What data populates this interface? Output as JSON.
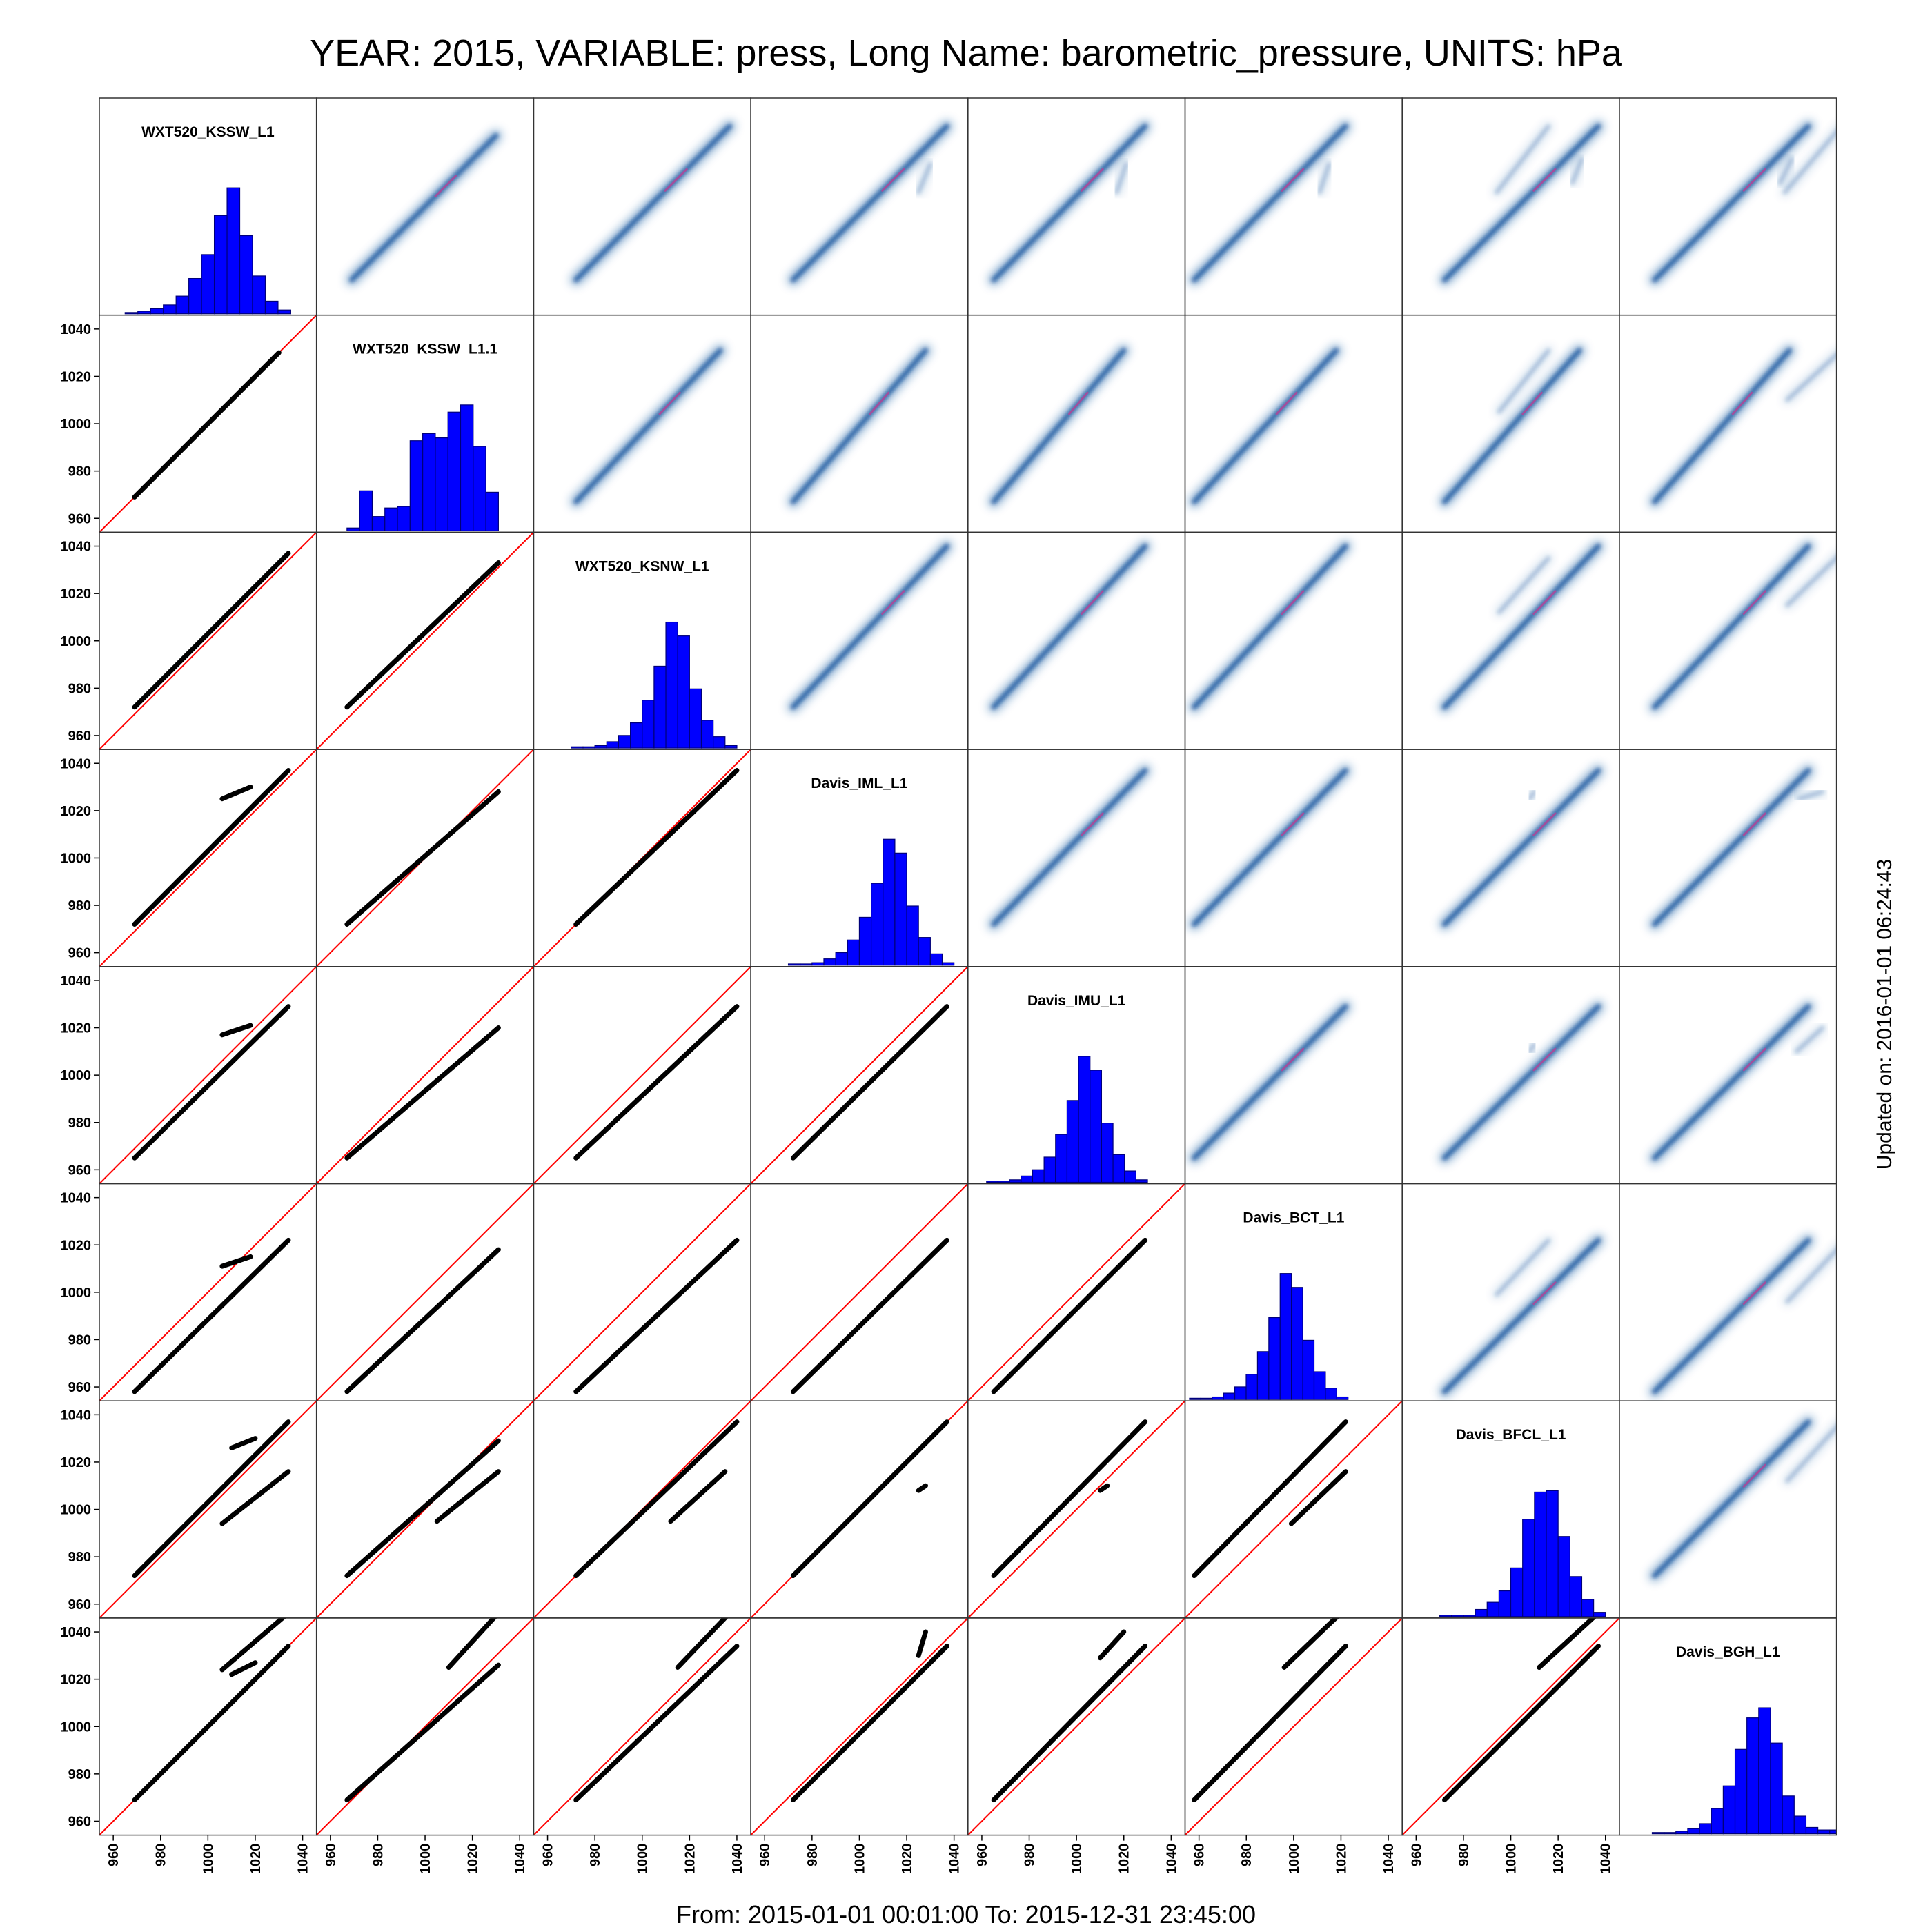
{
  "title": "YEAR: 2015, VARIABLE: press, Long Name: barometric_pressure, UNITS: hPa",
  "footer": "From: 2015-01-01 00:01:00 To: 2015-12-31 23:45:00",
  "updated": "Updated on: 2016-01-01 06:24:43",
  "colors": {
    "histogram_fill": "#0000ff",
    "scatter_points": "#000000",
    "identity_line": "#ff0000",
    "density": "#08519c",
    "density_peak": "#e7298a"
  },
  "chart_data": {
    "type": "scatter-matrix",
    "variables": [
      "WXT520_KSSW_L1",
      "WXT520_KSSW_L1.1",
      "WXT520_KSNW_L1",
      "Davis_IML_L1",
      "Davis_IMU_L1",
      "Davis_BCT_L1",
      "Davis_BFCL_L1",
      "Davis_BGH_L1"
    ],
    "axis_range": [
      955,
      1045
    ],
    "y_ticks": [
      960,
      980,
      1000,
      1020,
      1040
    ],
    "x_ticks": [
      960,
      980,
      1000,
      1020,
      1040
    ],
    "lower_panels": "scatter with identity line",
    "upper_panels": "smoothed density",
    "diagonal_panels": "histogram",
    "histograms": [
      {
        "name": "WXT520_KSSW_L1",
        "range": [
          965,
          1035
        ],
        "counts": [
          1,
          2,
          4,
          7,
          14,
          28,
          47,
          78,
          100,
          62,
          30,
          10,
          3
        ]
      },
      {
        "name": "WXT520_KSSW_L1.1",
        "range": [
          967,
          1031
        ],
        "counts": [
          2,
          28,
          10,
          16,
          17,
          63,
          68,
          65,
          83,
          88,
          59,
          27
        ]
      },
      {
        "name": "WXT520_KSNW_L1",
        "range": [
          970,
          1040
        ],
        "counts": [
          1,
          1,
          2,
          5,
          10,
          20,
          38,
          65,
          100,
          89,
          47,
          22,
          9,
          2
        ]
      },
      {
        "name": "Davis_IML_L1",
        "range": [
          970,
          1040
        ],
        "counts": [
          1,
          1,
          2,
          5,
          10,
          20,
          38,
          65,
          100,
          89,
          47,
          22,
          9,
          2
        ]
      },
      {
        "name": "Davis_IMU_L1",
        "range": [
          962,
          1030
        ],
        "counts": [
          1,
          1,
          2,
          5,
          10,
          20,
          38,
          65,
          100,
          89,
          47,
          22,
          9,
          2
        ]
      },
      {
        "name": "Davis_BCT_L1",
        "range": [
          956,
          1023
        ],
        "counts": [
          1,
          1,
          2,
          5,
          10,
          20,
          38,
          65,
          100,
          89,
          47,
          22,
          9,
          2
        ]
      },
      {
        "name": "Davis_BFCL_L1",
        "range": [
          970,
          1040
        ],
        "counts": [
          1,
          1,
          1,
          5,
          10,
          18,
          34,
          68,
          87,
          88,
          56,
          28,
          12,
          3
        ]
      },
      {
        "name": "Davis_BGH_L1",
        "range": [
          968,
          1048
        ],
        "counts": [
          1,
          1,
          2,
          4,
          8,
          20,
          38,
          67,
          92,
          100,
          72,
          30,
          14,
          5,
          3,
          3
        ]
      }
    ],
    "relations": [
      [
        null,
        null,
        null,
        null,
        null,
        null,
        null,
        null
      ],
      [
        {
          "segments": [
            [
              969,
              969,
              1030,
              1030
            ]
          ]
        },
        null,
        null,
        null,
        null,
        null,
        null,
        null
      ],
      [
        {
          "segments": [
            [
              969,
              972,
              1034,
              1037
            ]
          ]
        },
        {
          "segments": [
            [
              967,
              972,
              1031,
              1033
            ]
          ]
        },
        null,
        null,
        null,
        null,
        null,
        null
      ],
      [
        {
          "segments": [
            [
              969,
              972,
              1034,
              1037
            ],
            [
              1006,
              1025,
              1018,
              1030
            ]
          ]
        },
        {
          "segments": [
            [
              967,
              972,
              1031,
              1028
            ]
          ]
        },
        {
          "segments": [
            [
              972,
              972,
              1040,
              1037
            ]
          ]
        },
        null,
        null,
        null,
        null,
        null
      ],
      [
        {
          "segments": [
            [
              969,
              965,
              1034,
              1029
            ],
            [
              1006,
              1017,
              1018,
              1021
            ]
          ]
        },
        {
          "segments": [
            [
              967,
              965,
              1031,
              1020
            ]
          ]
        },
        {
          "segments": [
            [
              972,
              965,
              1040,
              1029
            ]
          ]
        },
        {
          "segments": [
            [
              972,
              965,
              1037,
              1029
            ]
          ]
        },
        null,
        null,
        null,
        null
      ],
      [
        {
          "segments": [
            [
              969,
              958,
              1034,
              1022
            ],
            [
              1006,
              1011,
              1018,
              1015
            ]
          ]
        },
        {
          "segments": [
            [
              967,
              958,
              1031,
              1018
            ]
          ]
        },
        {
          "segments": [
            [
              972,
              958,
              1040,
              1022
            ]
          ]
        },
        {
          "segments": [
            [
              972,
              958,
              1037,
              1022
            ]
          ]
        },
        {
          "segments": [
            [
              965,
              958,
              1029,
              1022
            ]
          ]
        },
        null,
        null,
        null
      ],
      [
        {
          "segments": [
            [
              969,
              972,
              1034,
              1037
            ],
            [
              1006,
              994,
              1034,
              1016
            ],
            [
              1010,
              1026,
              1020,
              1030
            ]
          ]
        },
        {
          "segments": [
            [
              967,
              972,
              1031,
              1029
            ],
            [
              1005,
              995,
              1031,
              1016
            ]
          ]
        },
        {
          "segments": [
            [
              972,
              972,
              1040,
              1037
            ],
            [
              1012,
              995,
              1035,
              1016
            ]
          ]
        },
        {
          "segments": [
            [
              972,
              972,
              1037,
              1037
            ],
            [
              1025,
              1008,
              1028,
              1010
            ]
          ]
        },
        {
          "segments": [
            [
              965,
              972,
              1029,
              1037
            ],
            [
              1010,
              1008,
              1013,
              1010
            ]
          ]
        },
        {
          "segments": [
            [
              958,
              972,
              1022,
              1037
            ],
            [
              999,
              994,
              1022,
              1016
            ]
          ]
        },
        null,
        null
      ],
      [
        {
          "segments": [
            [
              969,
              969,
              1034,
              1034
            ],
            [
              1006,
              1024,
              1034,
              1048
            ],
            [
              1010,
              1022,
              1020,
              1027
            ]
          ]
        },
        {
          "segments": [
            [
              967,
              969,
              1031,
              1026
            ],
            [
              1010,
              1025,
              1031,
              1048
            ]
          ]
        },
        {
          "segments": [
            [
              972,
              969,
              1040,
              1034
            ],
            [
              1015,
              1025,
              1037,
              1048
            ]
          ]
        },
        {
          "segments": [
            [
              972,
              969,
              1037,
              1034
            ],
            [
              1025,
              1030,
              1028,
              1040
            ]
          ]
        },
        {
          "segments": [
            [
              965,
              969,
              1029,
              1034
            ],
            [
              1010,
              1029,
              1020,
              1040
            ]
          ]
        },
        {
          "segments": [
            [
              958,
              969,
              1022,
              1034
            ],
            [
              996,
              1025,
              1020,
              1048
            ]
          ]
        },
        {
          "segments": [
            [
              972,
              969,
              1037,
              1034
            ],
            [
              1012,
              1025,
              1037,
              1048
            ]
          ]
        },
        null
      ]
    ]
  }
}
